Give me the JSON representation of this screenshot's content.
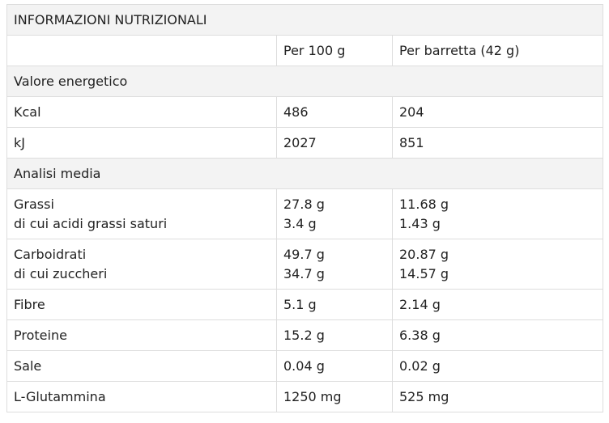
{
  "title": "INFORMAZIONI NUTRIZIONALI",
  "columns": [
    "",
    "Per 100 g",
    "Per barretta (42 g)"
  ],
  "sections": {
    "energy": "Valore energetico",
    "analysis": "Analisi media"
  },
  "rows": [
    {
      "label": "Kcal",
      "per100": "486",
      "perBar": "204"
    },
    {
      "label": "kJ",
      "per100": "2027",
      "perBar": "851"
    },
    {
      "label": "Grassi",
      "sublabel": "di cui acidi grassi saturi",
      "per100": "27.8 g",
      "per100sub": "3.4 g",
      "perBar": "11.68 g",
      "perBarsub": "1.43 g"
    },
    {
      "label": "Carboidrati",
      "sublabel": "di cui zuccheri",
      "per100": "49.7 g",
      "per100sub": "34.7 g",
      "perBar": "20.87 g",
      "perBarsub": "14.57 g"
    },
    {
      "label": "Fibre",
      "per100": "5.1 g",
      "perBar": "2.14 g"
    },
    {
      "label": "Proteine",
      "per100": "15.2 g",
      "perBar": "6.38 g"
    },
    {
      "label": "Sale",
      "per100": "0.04 g",
      "perBar": "0.02 g"
    },
    {
      "label": "L-Glutammina",
      "per100": "1250 mg",
      "perBar": "525 mg"
    }
  ]
}
